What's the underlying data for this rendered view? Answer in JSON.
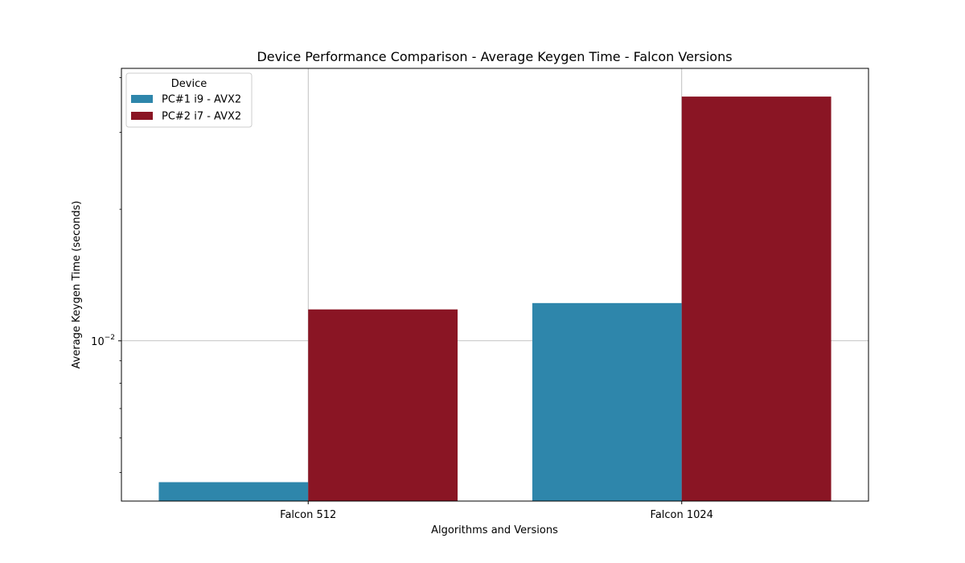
{
  "chart_data": {
    "type": "bar",
    "title": "Device Performance Comparison - Average Keygen Time - Falcon Versions",
    "xlabel": "Algorithms and Versions",
    "ylabel": "Average Keygen Time (seconds)",
    "yscale": "log",
    "ylim": [
      0.0043,
      0.042
    ],
    "ytick_label": {
      "base": "10",
      "exponent": "−2",
      "value": 0.01
    },
    "categories": [
      "Falcon 512",
      "Falcon 1024"
    ],
    "legend": {
      "title": "Device",
      "placement": "top-left"
    },
    "grid": true,
    "series": [
      {
        "name": "PC#1 i9 - AVX2",
        "color": "#2e86ab",
        "values": [
          0.00475,
          0.0122
        ]
      },
      {
        "name": "PC#2 i7 - AVX2",
        "color": "#8a1524",
        "values": [
          0.0118,
          0.0362
        ]
      }
    ]
  }
}
